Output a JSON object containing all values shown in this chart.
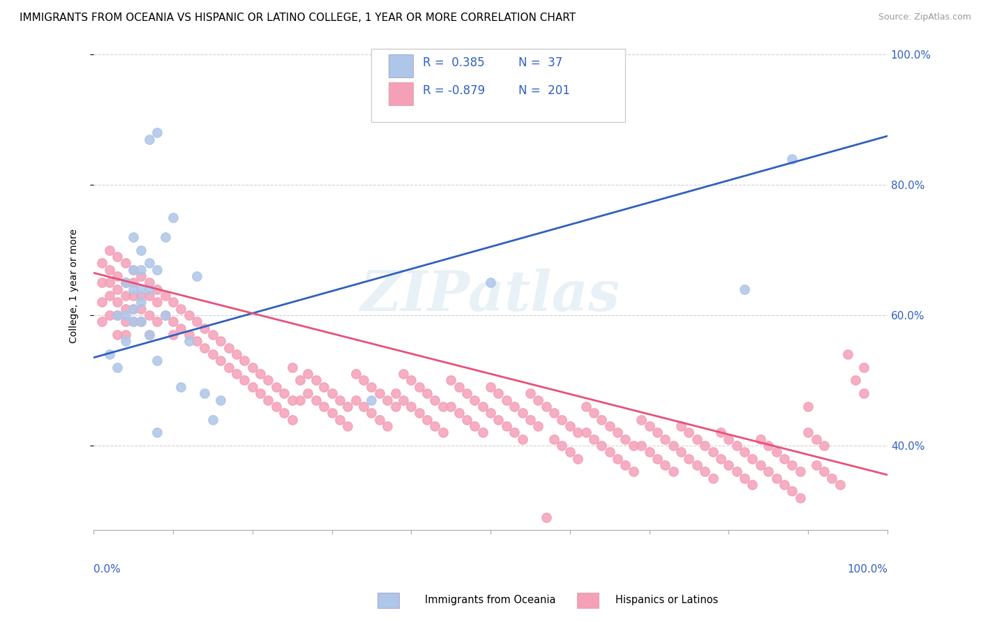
{
  "title": "IMMIGRANTS FROM OCEANIA VS HISPANIC OR LATINO COLLEGE, 1 YEAR OR MORE CORRELATION CHART",
  "source": "Source: ZipAtlas.com",
  "ylabel": "College, 1 year or more",
  "xlim": [
    0.0,
    1.0
  ],
  "ylim": [
    0.27,
    1.02
  ],
  "ytick_values": [
    0.4,
    0.6,
    0.8,
    1.0
  ],
  "ytick_labels": [
    "40.0%",
    "60.0%",
    "80.0%",
    "100.0%"
  ],
  "xtick_values": [
    0.0,
    0.1,
    0.2,
    0.3,
    0.4,
    0.5,
    0.6,
    0.7,
    0.8,
    0.9,
    1.0
  ],
  "blue_scatter": [
    [
      0.02,
      0.54
    ],
    [
      0.03,
      0.6
    ],
    [
      0.03,
      0.52
    ],
    [
      0.04,
      0.65
    ],
    [
      0.04,
      0.6
    ],
    [
      0.04,
      0.56
    ],
    [
      0.05,
      0.72
    ],
    [
      0.05,
      0.67
    ],
    [
      0.05,
      0.64
    ],
    [
      0.05,
      0.61
    ],
    [
      0.05,
      0.59
    ],
    [
      0.06,
      0.7
    ],
    [
      0.06,
      0.67
    ],
    [
      0.06,
      0.64
    ],
    [
      0.06,
      0.62
    ],
    [
      0.06,
      0.59
    ],
    [
      0.07,
      0.87
    ],
    [
      0.07,
      0.68
    ],
    [
      0.07,
      0.64
    ],
    [
      0.08,
      0.88
    ],
    [
      0.08,
      0.67
    ],
    [
      0.08,
      0.53
    ],
    [
      0.09,
      0.72
    ],
    [
      0.09,
      0.6
    ],
    [
      0.1,
      0.75
    ],
    [
      0.11,
      0.49
    ],
    [
      0.12,
      0.56
    ],
    [
      0.13,
      0.66
    ],
    [
      0.14,
      0.48
    ],
    [
      0.15,
      0.44
    ],
    [
      0.16,
      0.47
    ],
    [
      0.35,
      0.47
    ],
    [
      0.5,
      0.65
    ],
    [
      0.82,
      0.64
    ],
    [
      0.88,
      0.84
    ],
    [
      0.07,
      0.57
    ],
    [
      0.08,
      0.42
    ]
  ],
  "pink_scatter": [
    [
      0.01,
      0.68
    ],
    [
      0.01,
      0.65
    ],
    [
      0.01,
      0.62
    ],
    [
      0.01,
      0.59
    ],
    [
      0.02,
      0.7
    ],
    [
      0.02,
      0.67
    ],
    [
      0.02,
      0.65
    ],
    [
      0.02,
      0.63
    ],
    [
      0.02,
      0.6
    ],
    [
      0.03,
      0.69
    ],
    [
      0.03,
      0.66
    ],
    [
      0.03,
      0.64
    ],
    [
      0.03,
      0.62
    ],
    [
      0.03,
      0.6
    ],
    [
      0.03,
      0.57
    ],
    [
      0.04,
      0.68
    ],
    [
      0.04,
      0.65
    ],
    [
      0.04,
      0.63
    ],
    [
      0.04,
      0.61
    ],
    [
      0.04,
      0.59
    ],
    [
      0.04,
      0.57
    ],
    [
      0.05,
      0.67
    ],
    [
      0.05,
      0.65
    ],
    [
      0.05,
      0.63
    ],
    [
      0.05,
      0.61
    ],
    [
      0.05,
      0.59
    ],
    [
      0.06,
      0.66
    ],
    [
      0.06,
      0.63
    ],
    [
      0.06,
      0.61
    ],
    [
      0.06,
      0.59
    ],
    [
      0.07,
      0.65
    ],
    [
      0.07,
      0.63
    ],
    [
      0.07,
      0.6
    ],
    [
      0.07,
      0.57
    ],
    [
      0.08,
      0.64
    ],
    [
      0.08,
      0.62
    ],
    [
      0.08,
      0.59
    ],
    [
      0.09,
      0.63
    ],
    [
      0.09,
      0.6
    ],
    [
      0.1,
      0.62
    ],
    [
      0.1,
      0.59
    ],
    [
      0.1,
      0.57
    ],
    [
      0.11,
      0.61
    ],
    [
      0.11,
      0.58
    ],
    [
      0.12,
      0.6
    ],
    [
      0.12,
      0.57
    ],
    [
      0.13,
      0.59
    ],
    [
      0.13,
      0.56
    ],
    [
      0.14,
      0.58
    ],
    [
      0.14,
      0.55
    ],
    [
      0.15,
      0.57
    ],
    [
      0.15,
      0.54
    ],
    [
      0.16,
      0.56
    ],
    [
      0.16,
      0.53
    ],
    [
      0.17,
      0.55
    ],
    [
      0.17,
      0.52
    ],
    [
      0.18,
      0.54
    ],
    [
      0.18,
      0.51
    ],
    [
      0.19,
      0.53
    ],
    [
      0.19,
      0.5
    ],
    [
      0.2,
      0.52
    ],
    [
      0.2,
      0.49
    ],
    [
      0.21,
      0.51
    ],
    [
      0.21,
      0.48
    ],
    [
      0.22,
      0.5
    ],
    [
      0.22,
      0.47
    ],
    [
      0.23,
      0.49
    ],
    [
      0.23,
      0.46
    ],
    [
      0.24,
      0.48
    ],
    [
      0.24,
      0.45
    ],
    [
      0.25,
      0.52
    ],
    [
      0.25,
      0.47
    ],
    [
      0.25,
      0.44
    ],
    [
      0.26,
      0.5
    ],
    [
      0.26,
      0.47
    ],
    [
      0.27,
      0.51
    ],
    [
      0.27,
      0.48
    ],
    [
      0.28,
      0.5
    ],
    [
      0.28,
      0.47
    ],
    [
      0.29,
      0.49
    ],
    [
      0.29,
      0.46
    ],
    [
      0.3,
      0.48
    ],
    [
      0.3,
      0.45
    ],
    [
      0.31,
      0.47
    ],
    [
      0.31,
      0.44
    ],
    [
      0.32,
      0.46
    ],
    [
      0.32,
      0.43
    ],
    [
      0.33,
      0.51
    ],
    [
      0.33,
      0.47
    ],
    [
      0.34,
      0.5
    ],
    [
      0.34,
      0.46
    ],
    [
      0.35,
      0.49
    ],
    [
      0.35,
      0.45
    ],
    [
      0.36,
      0.48
    ],
    [
      0.36,
      0.44
    ],
    [
      0.37,
      0.47
    ],
    [
      0.37,
      0.43
    ],
    [
      0.38,
      0.46
    ],
    [
      0.38,
      0.48
    ],
    [
      0.39,
      0.51
    ],
    [
      0.39,
      0.47
    ],
    [
      0.4,
      0.5
    ],
    [
      0.4,
      0.46
    ],
    [
      0.41,
      0.49
    ],
    [
      0.41,
      0.45
    ],
    [
      0.42,
      0.48
    ],
    [
      0.42,
      0.44
    ],
    [
      0.43,
      0.47
    ],
    [
      0.43,
      0.43
    ],
    [
      0.44,
      0.46
    ],
    [
      0.44,
      0.42
    ],
    [
      0.45,
      0.5
    ],
    [
      0.45,
      0.46
    ],
    [
      0.46,
      0.49
    ],
    [
      0.46,
      0.45
    ],
    [
      0.47,
      0.48
    ],
    [
      0.47,
      0.44
    ],
    [
      0.48,
      0.47
    ],
    [
      0.48,
      0.43
    ],
    [
      0.49,
      0.46
    ],
    [
      0.49,
      0.42
    ],
    [
      0.5,
      0.49
    ],
    [
      0.5,
      0.45
    ],
    [
      0.51,
      0.48
    ],
    [
      0.51,
      0.44
    ],
    [
      0.52,
      0.47
    ],
    [
      0.52,
      0.43
    ],
    [
      0.53,
      0.46
    ],
    [
      0.53,
      0.42
    ],
    [
      0.54,
      0.45
    ],
    [
      0.54,
      0.41
    ],
    [
      0.55,
      0.48
    ],
    [
      0.55,
      0.44
    ],
    [
      0.56,
      0.47
    ],
    [
      0.56,
      0.43
    ],
    [
      0.57,
      0.46
    ],
    [
      0.57,
      0.29
    ],
    [
      0.58,
      0.45
    ],
    [
      0.58,
      0.41
    ],
    [
      0.59,
      0.44
    ],
    [
      0.59,
      0.4
    ],
    [
      0.6,
      0.43
    ],
    [
      0.6,
      0.39
    ],
    [
      0.61,
      0.42
    ],
    [
      0.61,
      0.38
    ],
    [
      0.62,
      0.46
    ],
    [
      0.62,
      0.42
    ],
    [
      0.63,
      0.45
    ],
    [
      0.63,
      0.41
    ],
    [
      0.64,
      0.44
    ],
    [
      0.64,
      0.4
    ],
    [
      0.65,
      0.43
    ],
    [
      0.65,
      0.39
    ],
    [
      0.66,
      0.42
    ],
    [
      0.66,
      0.38
    ],
    [
      0.67,
      0.41
    ],
    [
      0.67,
      0.37
    ],
    [
      0.68,
      0.4
    ],
    [
      0.68,
      0.36
    ],
    [
      0.69,
      0.44
    ],
    [
      0.69,
      0.4
    ],
    [
      0.7,
      0.43
    ],
    [
      0.7,
      0.39
    ],
    [
      0.71,
      0.42
    ],
    [
      0.71,
      0.38
    ],
    [
      0.72,
      0.41
    ],
    [
      0.72,
      0.37
    ],
    [
      0.73,
      0.4
    ],
    [
      0.73,
      0.36
    ],
    [
      0.74,
      0.43
    ],
    [
      0.74,
      0.39
    ],
    [
      0.75,
      0.42
    ],
    [
      0.75,
      0.38
    ],
    [
      0.76,
      0.41
    ],
    [
      0.76,
      0.37
    ],
    [
      0.77,
      0.4
    ],
    [
      0.77,
      0.36
    ],
    [
      0.78,
      0.39
    ],
    [
      0.78,
      0.35
    ],
    [
      0.79,
      0.42
    ],
    [
      0.79,
      0.38
    ],
    [
      0.8,
      0.41
    ],
    [
      0.8,
      0.37
    ],
    [
      0.81,
      0.4
    ],
    [
      0.81,
      0.36
    ],
    [
      0.82,
      0.39
    ],
    [
      0.82,
      0.35
    ],
    [
      0.83,
      0.38
    ],
    [
      0.83,
      0.34
    ],
    [
      0.84,
      0.41
    ],
    [
      0.84,
      0.37
    ],
    [
      0.85,
      0.4
    ],
    [
      0.85,
      0.36
    ],
    [
      0.86,
      0.39
    ],
    [
      0.86,
      0.35
    ],
    [
      0.87,
      0.38
    ],
    [
      0.87,
      0.34
    ],
    [
      0.88,
      0.37
    ],
    [
      0.88,
      0.33
    ],
    [
      0.89,
      0.36
    ],
    [
      0.89,
      0.32
    ],
    [
      0.9,
      0.46
    ],
    [
      0.9,
      0.42
    ],
    [
      0.91,
      0.41
    ],
    [
      0.91,
      0.37
    ],
    [
      0.92,
      0.4
    ],
    [
      0.92,
      0.36
    ],
    [
      0.93,
      0.35
    ],
    [
      0.94,
      0.34
    ],
    [
      0.95,
      0.54
    ],
    [
      0.96,
      0.5
    ],
    [
      0.97,
      0.52
    ],
    [
      0.97,
      0.48
    ]
  ],
  "blue_trend_x": [
    0.0,
    1.0
  ],
  "blue_trend_y": [
    0.535,
    0.875
  ],
  "pink_trend_x": [
    0.0,
    1.0
  ],
  "pink_trend_y": [
    0.665,
    0.355
  ],
  "blue_scatter_color": "#aec6e8",
  "pink_scatter_color": "#f4a0b8",
  "blue_line_color": "#3060c0",
  "pink_line_color": "#e8507a",
  "legend_text_color": "#3060c0",
  "right_tick_color": "#3060c0",
  "bottom_tick_color": "#3060c0",
  "grid_color": "#d0d0d0",
  "background_color": "#ffffff",
  "watermark": "ZIPatlas",
  "legend_blue_R": "0.385",
  "legend_blue_N": "37",
  "legend_pink_R": "-0.879",
  "legend_pink_N": "201",
  "bottom_legend_blue": "Immigrants from Oceania",
  "bottom_legend_pink": "Hispanics or Latinos"
}
